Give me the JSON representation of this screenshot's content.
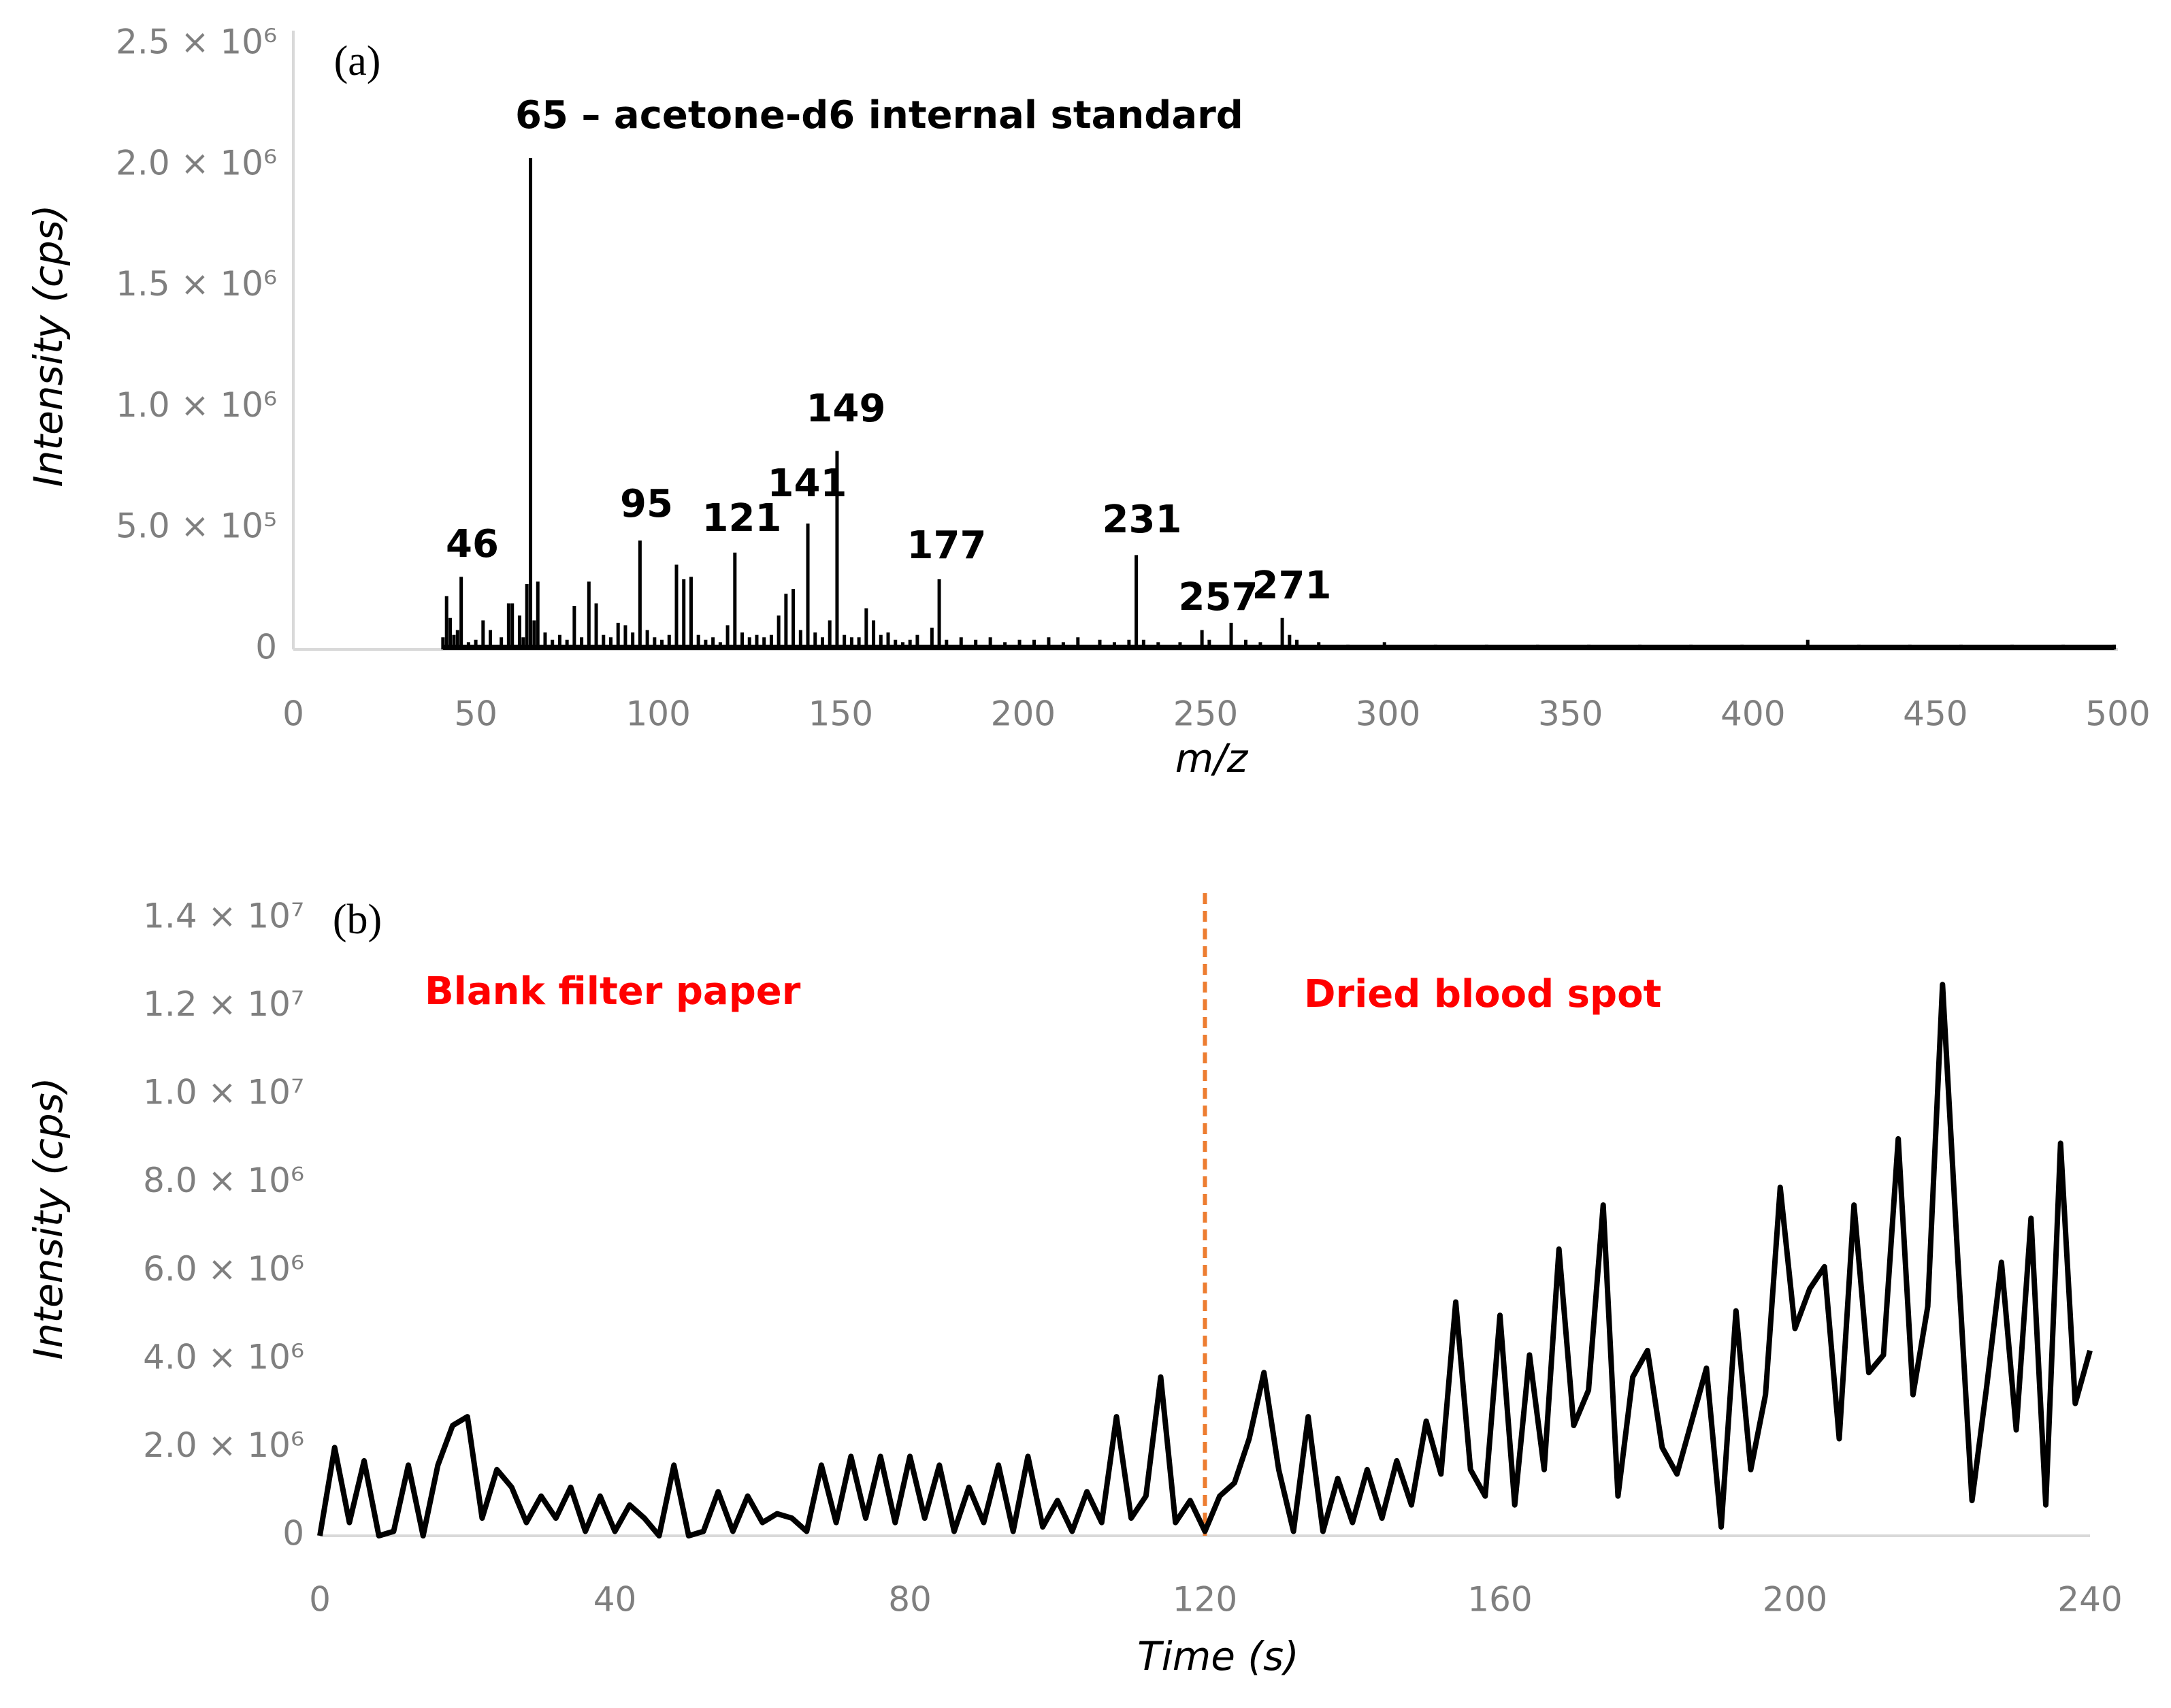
{
  "chart_data": [
    {
      "type": "spectrum",
      "panel_label": "(a)",
      "x_label": "m/z",
      "y_label": "Intensity (cps)",
      "color": "#000000",
      "annotations": [
        "65 – acetone-d6 internal standard",
        "46",
        "95",
        "121",
        "141",
        "149",
        "177",
        "231",
        "257",
        "271"
      ],
      "xlim": [
        0,
        500
      ],
      "xticks": [
        0,
        50,
        100,
        150,
        200,
        250,
        300,
        350,
        400,
        450,
        500
      ],
      "ylim": [
        0,
        2500000
      ],
      "yticks": [
        0,
        {
          "value": 500000,
          "label": "5.0 × 10⁵"
        },
        {
          "value": 1000000,
          "label": "1.0 × 10⁶"
        },
        {
          "value": 1500000,
          "label": "1.5 × 10⁶"
        },
        {
          "value": 2000000,
          "label": "2.0 × 10⁶"
        },
        {
          "value": 2500000,
          "label": "2.5 × 10⁶"
        }
      ],
      "x": [
        41,
        42,
        43,
        44,
        45,
        46,
        48,
        50,
        52,
        54,
        57,
        59,
        60,
        62,
        63,
        64,
        65,
        66,
        67,
        69,
        71,
        73,
        75,
        77,
        79,
        81,
        83,
        85,
        87,
        89,
        91,
        93,
        95,
        97,
        99,
        101,
        103,
        105,
        107,
        109,
        111,
        113,
        115,
        117,
        119,
        121,
        123,
        125,
        127,
        129,
        131,
        133,
        135,
        137,
        139,
        141,
        143,
        145,
        147,
        149,
        151,
        153,
        155,
        157,
        159,
        161,
        163,
        165,
        167,
        169,
        171,
        175,
        177,
        179,
        183,
        187,
        191,
        195,
        199,
        203,
        207,
        211,
        215,
        221,
        225,
        229,
        231,
        233,
        237,
        243,
        249,
        251,
        257,
        261,
        265,
        271,
        273,
        275,
        281,
        289,
        299,
        313,
        327,
        341,
        355,
        369,
        383,
        397,
        415,
        429,
        443,
        457,
        471,
        485,
        499
      ],
      "values": [
        50000.0,
        220000.0,
        130000.0,
        60000.0,
        80000.0,
        300000.0,
        30000.0,
        40000.0,
        120000.0,
        80000.0,
        50000.0,
        190000.0,
        190000.0,
        140000.0,
        50000.0,
        270000.0,
        2030000.0,
        120000.0,
        280000.0,
        70000.0,
        40000.0,
        60000.0,
        40000.0,
        180000.0,
        50000.0,
        280000.0,
        190000.0,
        60000.0,
        50000.0,
        110000.0,
        100000.0,
        70000.0,
        450000.0,
        80000.0,
        50000.0,
        40000.0,
        60000.0,
        350000.0,
        290000.0,
        300000.0,
        60000.0,
        40000.0,
        50000.0,
        30000.0,
        100000.0,
        400000.0,
        70000.0,
        50000.0,
        60000.0,
        50000.0,
        60000.0,
        140000.0,
        230000.0,
        250000.0,
        80000.0,
        520000.0,
        70000.0,
        50000.0,
        120000.0,
        820000.0,
        60000.0,
        50000.0,
        50000.0,
        170000.0,
        120000.0,
        60000.0,
        70000.0,
        40000.0,
        30000.0,
        40000.0,
        60000.0,
        90000.0,
        290000.0,
        40000.0,
        50000.0,
        40000.0,
        50000.0,
        30000.0,
        40000.0,
        40000.0,
        50000.0,
        30000.0,
        50000.0,
        40000.0,
        30000.0,
        40000.0,
        390000.0,
        40000.0,
        30000.0,
        30000.0,
        80000.0,
        40000.0,
        110000.0,
        40000.0,
        30000.0,
        130000.0,
        60000.0,
        40000.0,
        30000.0,
        20000.0,
        30000.0,
        20000.0,
        20000.0,
        20000.0,
        20000.0,
        20000.0,
        20000.0,
        20000.0,
        40000.0,
        20000.0,
        20000.0,
        20000.0,
        20000.0,
        20000.0,
        20000.0
      ]
    },
    {
      "type": "line",
      "panel_label": "(b)",
      "x_label": "Time (s)",
      "y_label": "Intensity (cps)",
      "color": "#000000",
      "annotations": [
        "Blank filter paper",
        "Dried blood spot"
      ],
      "annotation_color": "#ff0000",
      "vline": {
        "x": 120,
        "color": "#ed7d31",
        "style": "dashed"
      },
      "xlim": [
        0,
        240
      ],
      "xticks": [
        0,
        40,
        80,
        120,
        160,
        200,
        240
      ],
      "ylim": [
        0,
        14000000
      ],
      "yticks": [
        0,
        {
          "value": 2000000,
          "label": "2.0 × 10⁶"
        },
        {
          "value": 4000000,
          "label": "4.0 × 10⁶"
        },
        {
          "value": 6000000,
          "label": "6.0 × 10⁶"
        },
        {
          "value": 8000000,
          "label": "8.0 × 10⁶"
        },
        {
          "value": 10000000,
          "label": "1.0 × 10⁷"
        },
        {
          "value": 12000000,
          "label": "1.2 × 10⁷"
        },
        {
          "value": 14000000,
          "label": "1.4 × 10⁷"
        }
      ],
      "x": [
        0,
        2,
        4,
        6,
        8,
        10,
        12,
        14,
        16,
        18,
        20,
        22,
        24,
        26,
        28,
        30,
        32,
        34,
        36,
        38,
        40,
        42,
        44,
        46,
        48,
        50,
        52,
        54,
        56,
        58,
        60,
        62,
        64,
        66,
        68,
        70,
        72,
        74,
        76,
        78,
        80,
        82,
        84,
        86,
        88,
        90,
        92,
        94,
        96,
        98,
        100,
        102,
        104,
        106,
        108,
        110,
        112,
        114,
        116,
        118,
        120,
        122,
        124,
        126,
        128,
        130,
        132,
        134,
        136,
        138,
        140,
        142,
        144,
        146,
        148,
        150,
        152,
        154,
        156,
        158,
        160,
        162,
        164,
        166,
        168,
        170,
        172,
        174,
        176,
        178,
        180,
        182,
        184,
        186,
        188,
        190,
        192,
        194,
        196,
        198,
        200,
        202,
        204,
        206,
        208,
        210,
        212,
        214,
        216,
        218,
        220,
        222,
        224,
        226,
        228,
        230,
        232,
        234,
        236,
        238,
        240
      ],
      "values": [
        0,
        2000000.0,
        300000.0,
        1700000.0,
        0,
        100000.0,
        1600000.0,
        0,
        1600000.0,
        2500000.0,
        2700000.0,
        400000.0,
        1500000.0,
        1100000.0,
        300000.0,
        900000.0,
        400000.0,
        1100000.0,
        100000.0,
        900000.0,
        100000.0,
        700000.0,
        400000.0,
        0,
        1600000.0,
        0,
        100000.0,
        1000000.0,
        100000.0,
        900000.0,
        300000.0,
        500000.0,
        400000.0,
        100000.0,
        1600000.0,
        300000.0,
        1800000.0,
        400000.0,
        1800000.0,
        300000.0,
        1800000.0,
        400000.0,
        1600000.0,
        100000.0,
        1100000.0,
        300000.0,
        1600000.0,
        100000.0,
        1800000.0,
        200000.0,
        800000.0,
        100000.0,
        1000000.0,
        300000.0,
        2700000.0,
        400000.0,
        900000.0,
        3600000.0,
        300000.0,
        800000.0,
        100000.0,
        900000.0,
        1200000.0,
        2200000.0,
        3700000.0,
        1500000.0,
        100000.0,
        2700000.0,
        100000.0,
        1300000.0,
        300000.0,
        1500000.0,
        400000.0,
        1700000.0,
        700000.0,
        2600000.0,
        1400000.0,
        5300000.0,
        1500000.0,
        900000.0,
        5000000.0,
        700000.0,
        4100000.0,
        1500000.0,
        6500000.0,
        2500000.0,
        3300000.0,
        7500000.0,
        900000.0,
        3600000.0,
        4200000.0,
        2000000.0,
        1400000.0,
        2600000.0,
        3800000.0,
        200000.0,
        5100000.0,
        1500000.0,
        3200000.0,
        7900000.0,
        4700000.0,
        5600000.0,
        6100000.0,
        2200000.0,
        7500000.0,
        3700000.0,
        4100000.0,
        9000000.0,
        3200000.0,
        5200000.0,
        12500000.0,
        6500000.0,
        800000.0,
        3400000.0,
        6200000.0,
        2400000.0,
        7200000.0,
        700000.0,
        8900000.0,
        3000000.0,
        4200000.0
      ]
    }
  ]
}
